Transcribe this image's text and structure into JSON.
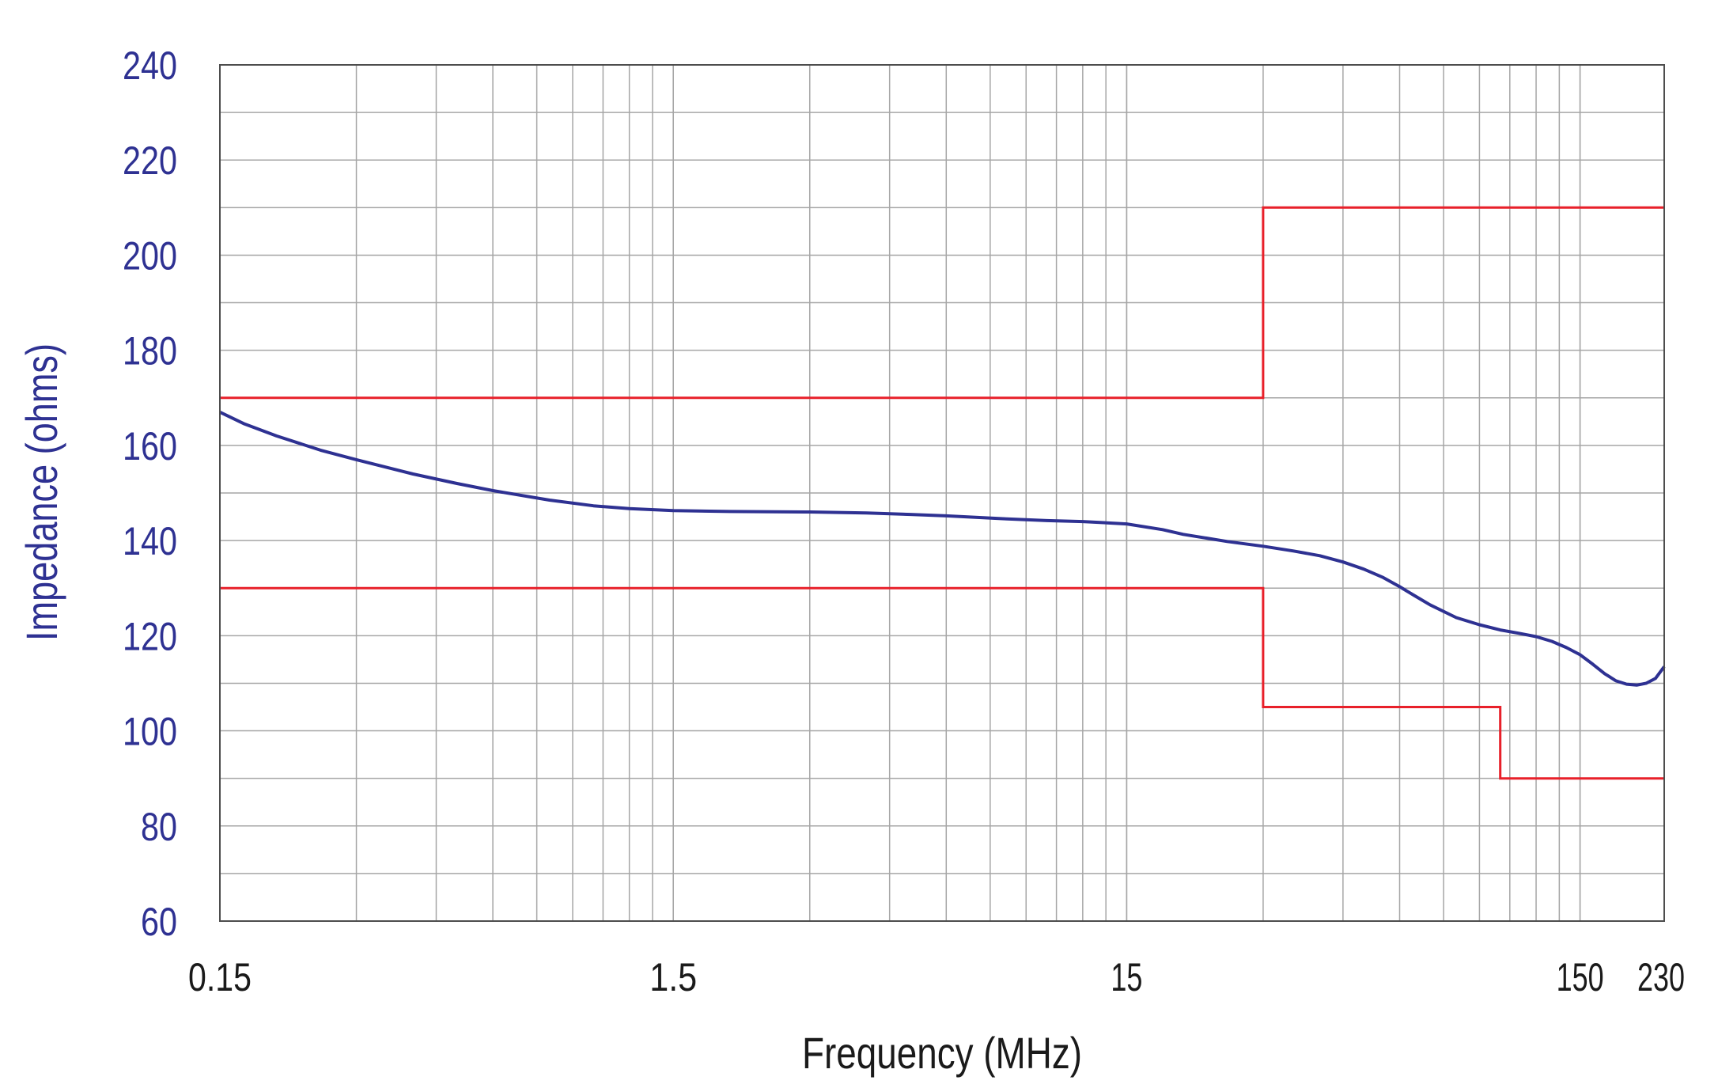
{
  "chart_data": {
    "type": "line",
    "title": "",
    "xlabel": "Frequency (MHz)",
    "ylabel": "Impedance (ohms)",
    "x_scale": "log",
    "xlim": [
      0.15,
      230
    ],
    "ylim": [
      60,
      240
    ],
    "x_ticks": [
      0.15,
      1.5,
      15,
      150,
      230
    ],
    "x_tick_labels": [
      "0.15",
      "1.5",
      "15",
      "150",
      "230"
    ],
    "y_ticks": [
      60,
      80,
      100,
      120,
      140,
      160,
      180,
      200,
      220,
      240
    ],
    "y_tick_labels": [
      "60",
      "80",
      "100",
      "120",
      "140",
      "160",
      "180",
      "200",
      "220",
      "240"
    ],
    "grid": true,
    "legend": "none",
    "colors": {
      "measured": "#2e3192",
      "limits": "#e8202a",
      "text": "#1a1a1a",
      "y_ticks": "#2e3192",
      "grid": "#a6a6a6",
      "frame": "#4d4d4d"
    },
    "series": [
      {
        "x": [
          0.15,
          0.17,
          0.2,
          0.25,
          0.3,
          0.4,
          0.5,
          0.6,
          0.8,
          1.0,
          1.2,
          1.5,
          2,
          3,
          4,
          5,
          6,
          8,
          10,
          12,
          15,
          18,
          20,
          25,
          30,
          35,
          40,
          45,
          50,
          55,
          60,
          65,
          70,
          80,
          90,
          100,
          110,
          120,
          130,
          140,
          150,
          160,
          170,
          180,
          190,
          200,
          210,
          220,
          230
        ],
        "y": [
          167,
          164.5,
          162,
          159,
          157,
          154,
          152,
          150.5,
          148.5,
          147.3,
          146.7,
          146.3,
          146.1,
          146,
          145.8,
          145.5,
          145.2,
          144.6,
          144.2,
          144,
          143.5,
          142.3,
          141.3,
          139.8,
          138.8,
          137.8,
          136.8,
          135.5,
          134,
          132.3,
          130.3,
          128.3,
          126.5,
          123.8,
          122.3,
          121.2,
          120.5,
          119.8,
          118.8,
          117.5,
          116,
          114,
          112,
          110.5,
          109.8,
          109.6,
          110,
          111,
          113.5
        ]
      },
      {
        "x": [
          0.15,
          30,
          30,
          230
        ],
        "y": [
          170,
          170,
          210,
          210
        ]
      },
      {
        "x": [
          0.15,
          30,
          30,
          100,
          100,
          230
        ],
        "y": [
          130,
          130,
          105,
          105,
          90,
          90
        ]
      }
    ]
  }
}
